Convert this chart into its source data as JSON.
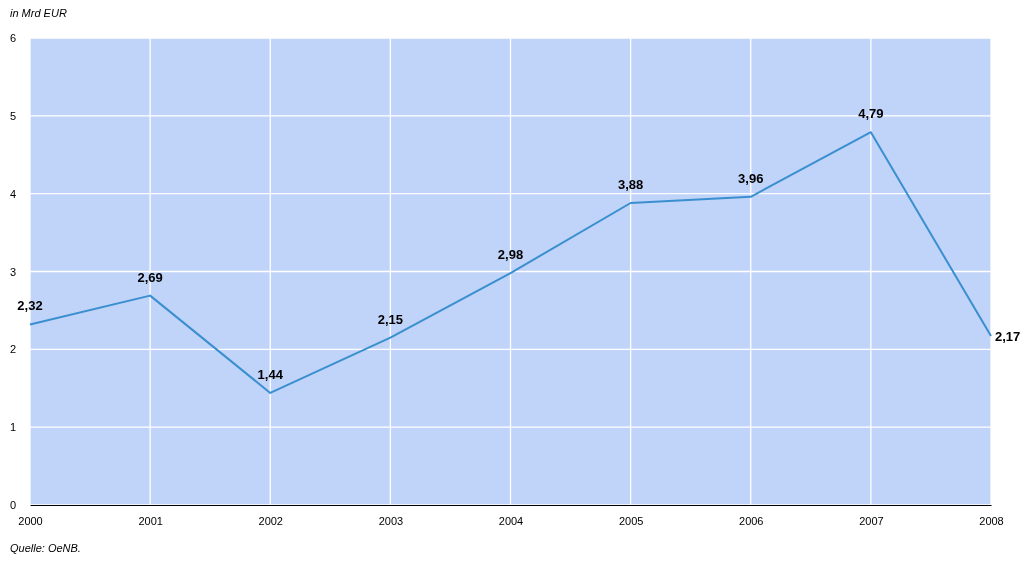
{
  "chart_data": {
    "type": "line",
    "ylabel": "in Mrd EUR",
    "x": [
      2000,
      2001,
      2002,
      2003,
      2004,
      2005,
      2006,
      2007,
      2008
    ],
    "series": [
      {
        "color": "#3a8fd0",
        "values": [
          2.32,
          2.69,
          1.44,
          2.15,
          2.98,
          3.88,
          3.96,
          4.79,
          2.17
        ],
        "value_labels": [
          "2,32",
          "2,69",
          "1,44",
          "2,15",
          "2,98",
          "3,88",
          "3,96",
          "4,79",
          "2,17"
        ]
      }
    ],
    "xlim": [
      2000,
      2008
    ],
    "xticks": [
      2000,
      2001,
      2002,
      2003,
      2004,
      2005,
      2006,
      2007,
      2008
    ],
    "ylim": [
      0,
      6
    ],
    "yticks": [
      0,
      1,
      2,
      3,
      4,
      5,
      6
    ],
    "grid": true,
    "marker": "none",
    "line_style": "solid",
    "annotations": [
      "Quelle: OeNB."
    ]
  }
}
